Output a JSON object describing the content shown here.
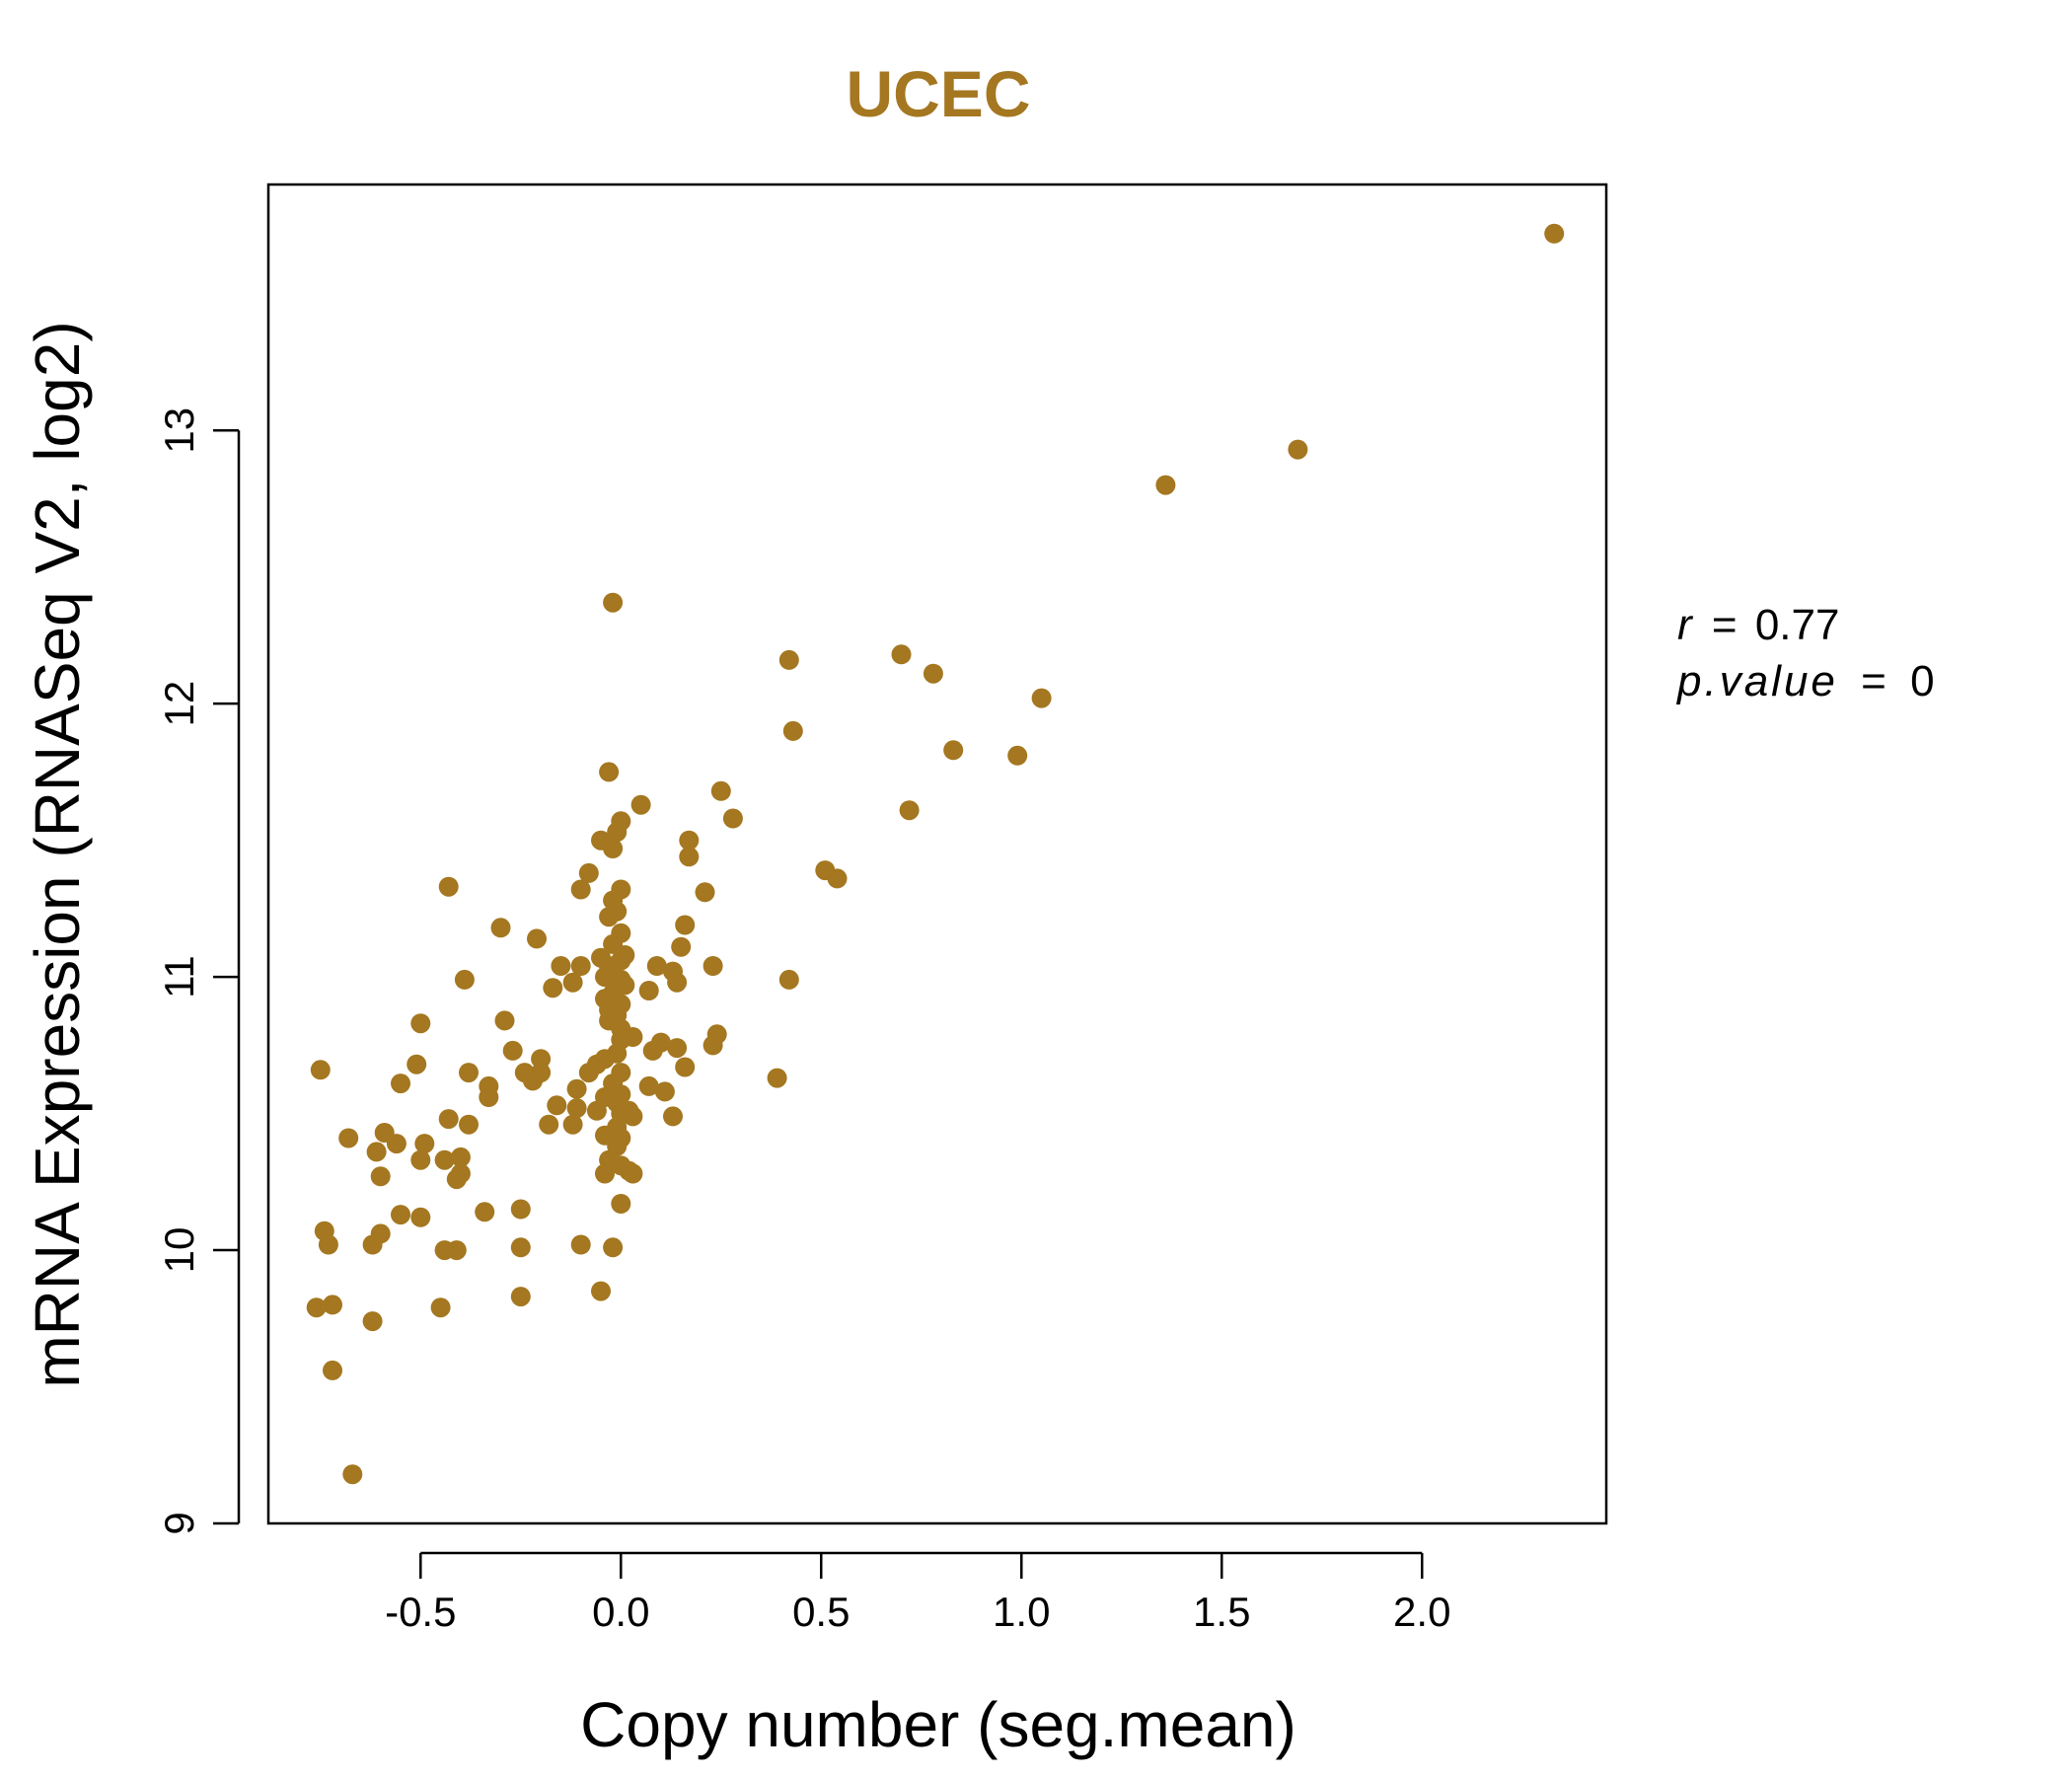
{
  "colors": {
    "accent": "#A47720",
    "axis": "#000000"
  },
  "chart_data": {
    "type": "scatter",
    "title": "UCEC",
    "xlabel": "Copy number (seg.mean)",
    "ylabel": "mRNA Expression (RNASeq V2, log2)",
    "xlim": [
      -0.88,
      2.46
    ],
    "ylim": [
      9.0,
      13.9
    ],
    "x_ticks": [
      -0.5,
      0.0,
      0.5,
      1.0,
      1.5,
      2.0
    ],
    "x_tick_labels": [
      "-0.5",
      "0.0",
      "0.5",
      "1.0",
      "1.5",
      "2.0"
    ],
    "y_ticks": [
      9,
      10,
      11,
      12,
      13
    ],
    "y_tick_labels": [
      "9",
      "10",
      "11",
      "12",
      "13"
    ],
    "annotations": {
      "r_label": "r",
      "r_value": "0.77",
      "p_label": "p.value",
      "p_value": "0"
    },
    "points": [
      [
        2.33,
        13.72
      ],
      [
        1.69,
        12.93
      ],
      [
        1.36,
        12.8
      ],
      [
        -0.02,
        12.37
      ],
      [
        0.42,
        12.16
      ],
      [
        0.7,
        12.18
      ],
      [
        0.78,
        12.11
      ],
      [
        1.05,
        12.02
      ],
      [
        0.43,
        11.9
      ],
      [
        0.83,
        11.83
      ],
      [
        0.99,
        11.81
      ],
      [
        -0.03,
        11.75
      ],
      [
        0.25,
        11.68
      ],
      [
        0.05,
        11.63
      ],
      [
        0.72,
        11.61
      ],
      [
        0.28,
        11.58
      ],
      [
        0.0,
        11.57
      ],
      [
        -0.01,
        11.53
      ],
      [
        -0.05,
        11.5
      ],
      [
        0.17,
        11.5
      ],
      [
        -0.02,
        11.47
      ],
      [
        0.17,
        11.44
      ],
      [
        0.51,
        11.39
      ],
      [
        0.54,
        11.36
      ],
      [
        -0.08,
        11.38
      ],
      [
        -0.43,
        11.33
      ],
      [
        -0.1,
        11.32
      ],
      [
        0.0,
        11.32
      ],
      [
        0.21,
        11.31
      ],
      [
        -0.02,
        11.28
      ],
      [
        -0.01,
        11.24
      ],
      [
        -0.03,
        11.22
      ],
      [
        0.16,
        11.19
      ],
      [
        -0.3,
        11.18
      ],
      [
        0.0,
        11.16
      ],
      [
        -0.21,
        11.14
      ],
      [
        0.15,
        11.11
      ],
      [
        -0.02,
        11.12
      ],
      [
        0.01,
        11.08
      ],
      [
        -0.05,
        11.07
      ],
      [
        0.0,
        11.06
      ],
      [
        -0.03,
        11.04
      ],
      [
        -0.15,
        11.04
      ],
      [
        -0.1,
        11.04
      ],
      [
        0.09,
        11.04
      ],
      [
        0.23,
        11.04
      ],
      [
        0.13,
        11.02
      ],
      [
        -0.02,
        11.02
      ],
      [
        -0.04,
        11.0
      ],
      [
        0.0,
        10.99
      ],
      [
        0.42,
        10.99
      ],
      [
        -0.39,
        10.99
      ],
      [
        -0.12,
        10.98
      ],
      [
        0.14,
        10.98
      ],
      [
        0.01,
        10.97
      ],
      [
        -0.17,
        10.96
      ],
      [
        0.07,
        10.95
      ],
      [
        -0.02,
        10.94
      ],
      [
        -0.04,
        10.92
      ],
      [
        0.0,
        10.9
      ],
      [
        -0.03,
        10.88
      ],
      [
        -0.01,
        10.86
      ],
      [
        -0.29,
        10.84
      ],
      [
        -0.5,
        10.83
      ],
      [
        -0.03,
        10.84
      ],
      [
        0.0,
        10.81
      ],
      [
        0.24,
        10.79
      ],
      [
        0.03,
        10.78
      ],
      [
        0.0,
        10.77
      ],
      [
        0.1,
        10.76
      ],
      [
        0.23,
        10.75
      ],
      [
        0.14,
        10.74
      ],
      [
        -0.27,
        10.73
      ],
      [
        0.08,
        10.73
      ],
      [
        -0.01,
        10.72
      ],
      [
        -0.2,
        10.7
      ],
      [
        -0.04,
        10.7
      ],
      [
        -0.51,
        10.68
      ],
      [
        -0.06,
        10.68
      ],
      [
        -0.75,
        10.66
      ],
      [
        0.16,
        10.67
      ],
      [
        -0.38,
        10.65
      ],
      [
        -0.24,
        10.65
      ],
      [
        -0.2,
        10.65
      ],
      [
        0.0,
        10.65
      ],
      [
        -0.08,
        10.65
      ],
      [
        0.39,
        10.63
      ],
      [
        -0.22,
        10.62
      ],
      [
        -0.55,
        10.61
      ],
      [
        -0.33,
        10.6
      ],
      [
        -0.02,
        10.61
      ],
      [
        0.07,
        10.6
      ],
      [
        -0.11,
        10.59
      ],
      [
        0.11,
        10.58
      ],
      [
        -0.33,
        10.56
      ],
      [
        0.0,
        10.57
      ],
      [
        -0.04,
        10.56
      ],
      [
        -0.01,
        10.54
      ],
      [
        -0.16,
        10.53
      ],
      [
        -0.11,
        10.52
      ],
      [
        0.02,
        10.51
      ],
      [
        -0.06,
        10.51
      ],
      [
        0.0,
        10.5
      ],
      [
        0.13,
        10.49
      ],
      [
        0.03,
        10.49
      ],
      [
        -0.43,
        10.48
      ],
      [
        -0.38,
        10.46
      ],
      [
        -0.18,
        10.46
      ],
      [
        -0.12,
        10.46
      ],
      [
        -0.01,
        10.45
      ],
      [
        -0.59,
        10.43
      ],
      [
        -0.04,
        10.42
      ],
      [
        0.0,
        10.41
      ],
      [
        -0.68,
        10.41
      ],
      [
        -0.56,
        10.39
      ],
      [
        -0.49,
        10.39
      ],
      [
        -0.01,
        10.38
      ],
      [
        -0.61,
        10.36
      ],
      [
        -0.5,
        10.33
      ],
      [
        -0.44,
        10.33
      ],
      [
        -0.4,
        10.34
      ],
      [
        -0.03,
        10.33
      ],
      [
        0.0,
        10.31
      ],
      [
        0.02,
        10.29
      ],
      [
        -0.04,
        10.28
      ],
      [
        0.03,
        10.28
      ],
      [
        -0.6,
        10.27
      ],
      [
        -0.41,
        10.26
      ],
      [
        -0.4,
        10.28
      ],
      [
        0.0,
        10.17
      ],
      [
        -0.25,
        10.15
      ],
      [
        -0.34,
        10.14
      ],
      [
        -0.55,
        10.13
      ],
      [
        -0.5,
        10.12
      ],
      [
        -0.74,
        10.07
      ],
      [
        -0.6,
        10.06
      ],
      [
        -0.62,
        10.02
      ],
      [
        -0.73,
        10.02
      ],
      [
        -0.1,
        10.02
      ],
      [
        -0.02,
        10.01
      ],
      [
        -0.25,
        10.01
      ],
      [
        -0.44,
        10.0
      ],
      [
        -0.41,
        10.0
      ],
      [
        -0.05,
        9.85
      ],
      [
        -0.25,
        9.83
      ],
      [
        -0.72,
        9.8
      ],
      [
        -0.76,
        9.79
      ],
      [
        -0.45,
        9.79
      ],
      [
        -0.62,
        9.74
      ],
      [
        -0.72,
        9.56
      ],
      [
        -0.67,
        9.18
      ]
    ]
  }
}
